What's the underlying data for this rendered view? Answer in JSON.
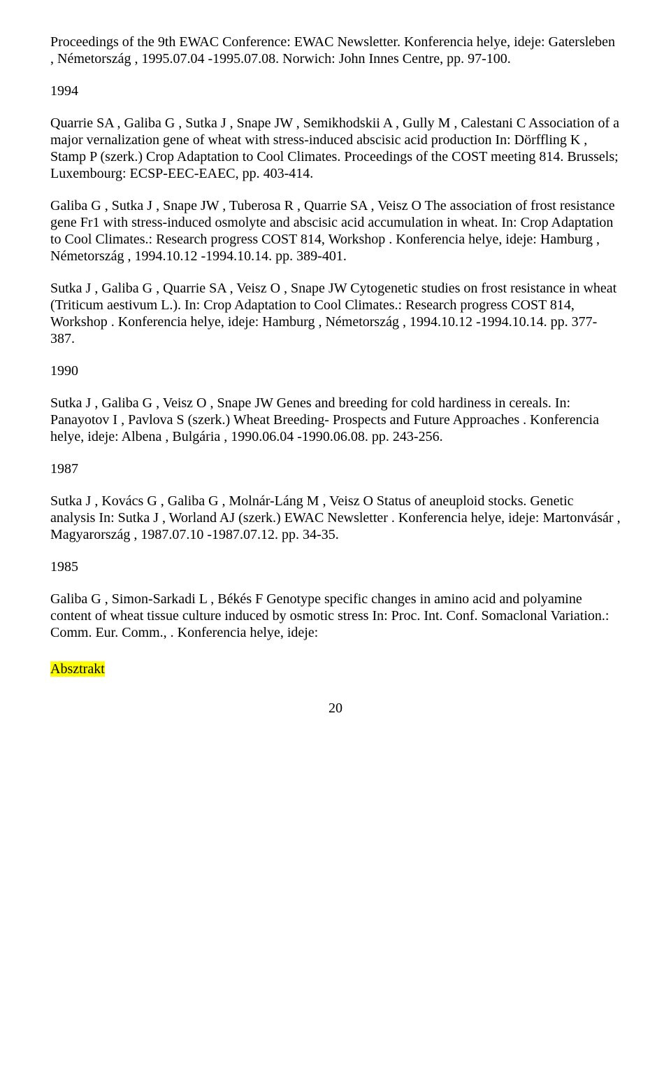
{
  "top_entry": {
    "text": "Proceedings of the 9th EWAC Conference: EWAC Newsletter. Konferencia helye, ideje: Gatersleben , Németország , 1995.07.04 -1995.07.08. Norwich: John Innes Centre, pp. 97-100."
  },
  "year_1994": "1994",
  "entry_1994_1": {
    "text": "Quarrie SA , Galiba G , Sutka J , Snape JW , Semikhodskii A , Gully M , Calestani C\nAssociation of a major vernalization gene of wheat with stress-induced abscisic acid production\nIn: Dörffling K , Stamp P (szerk.)\nCrop Adaptation to Cool Climates. Proceedings of the COST meeting 814. Brussels; Luxembourg: ECSP-EEC-EAEC, pp. 403-414."
  },
  "entry_1994_2": {
    "text": "Galiba G , Sutka J , Snape JW , Tuberosa R , Quarrie SA , Veisz O\nThe association of frost resistance gene Fr1 with stress-induced osmolyte and abscisic acid accumulation in wheat.\nIn: Crop Adaptation to Cool Climates.: Research progress COST 814, Workshop . Konferencia helye, ideje: Hamburg , Németország , 1994.10.12 -1994.10.14. pp. 389-401."
  },
  "entry_1994_3": {
    "text": "Sutka J , Galiba G , Quarrie SA , Veisz O , Snape JW\nCytogenetic studies on frost resistance in wheat (Triticum aestivum L.).\nIn: Crop Adaptation to Cool Climates.: Research progress COST 814, Workshop . Konferencia helye, ideje: Hamburg , Németország , 1994.10.12 -1994.10.14. pp. 377-387."
  },
  "year_1990": "1990",
  "entry_1990_1": {
    "text": "Sutka J , Galiba G , Veisz O , Snape JW\nGenes and breeding for cold hardiness in cereals.\nIn: Panayotov I , Pavlova S (szerk.)\nWheat Breeding- Prospects and Future Approaches . Konferencia helye, ideje: Albena , Bulgária , 1990.06.04 -1990.06.08. pp. 243-256."
  },
  "year_1987": "1987",
  "entry_1987_1": {
    "text": "Sutka J , Kovács G , Galiba G , Molnár-Láng M , Veisz O\nStatus of aneuploid stocks. Genetic analysis\nIn: Sutka J , Worland AJ (szerk.)\nEWAC Newsletter . Konferencia helye, ideje: Martonvásár , Magyarország , 1987.07.10 -1987.07.12. pp. 34-35."
  },
  "year_1985": "1985",
  "entry_1985_1": {
    "text": "Galiba G , Simon-Sarkadi L , Békés F\nGenotype specific changes in amino acid and polyamine content of wheat tissue culture induced by osmotic stress\nIn: Proc. Int. Conf. Somaclonal Variation.: Comm. Eur. Comm., . Konferencia helye, ideje:"
  },
  "section_heading": "Absztrakt",
  "page_number": "20"
}
